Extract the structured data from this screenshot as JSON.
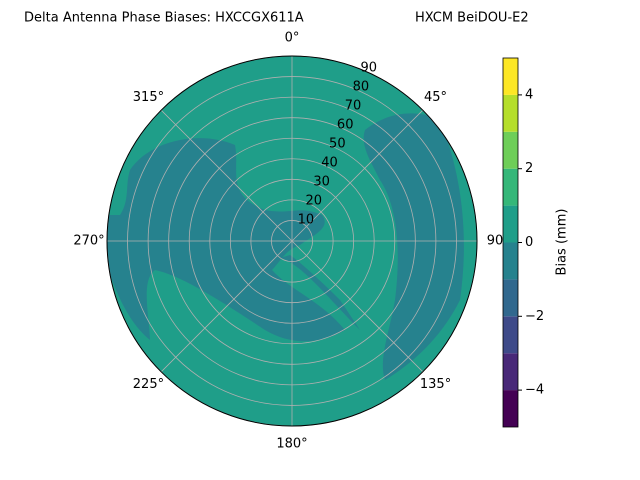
{
  "chart_data": {
    "type": "polar-contour",
    "title": "Delta Antenna Phase Biases: HXCCGX611A",
    "subtitle": "HXCM BeiDOU-E2",
    "thetaticks": [
      {
        "value": 0,
        "label": "0°"
      },
      {
        "value": 45,
        "label": "45°"
      },
      {
        "value": 90,
        "label": "90"
      },
      {
        "value": 135,
        "label": "135°"
      },
      {
        "value": 180,
        "label": "180°"
      },
      {
        "value": 225,
        "label": "225°"
      },
      {
        "value": 270,
        "label": "270°"
      },
      {
        "value": 315,
        "label": "315°"
      }
    ],
    "rlim": [
      0,
      90
    ],
    "rticks": [
      10,
      20,
      30,
      40,
      50,
      60,
      70,
      80,
      90
    ],
    "grid": true,
    "colorbar": {
      "label": "Bias (mm)",
      "levels": [
        -5,
        -4,
        -3,
        -2,
        -1,
        0,
        1,
        2,
        3,
        4,
        5
      ],
      "colors": [
        "#440154",
        "#482878",
        "#3e4a89",
        "#31688e",
        "#26828e",
        "#1f9e89",
        "#35b779",
        "#6ece58",
        "#b5de2b",
        "#fde725"
      ],
      "lim": [
        -5,
        5
      ],
      "ticks": [
        {
          "value": -4,
          "label": "−4"
        },
        {
          "value": -2,
          "label": "−2"
        },
        0,
        2,
        4
      ]
    }
  }
}
